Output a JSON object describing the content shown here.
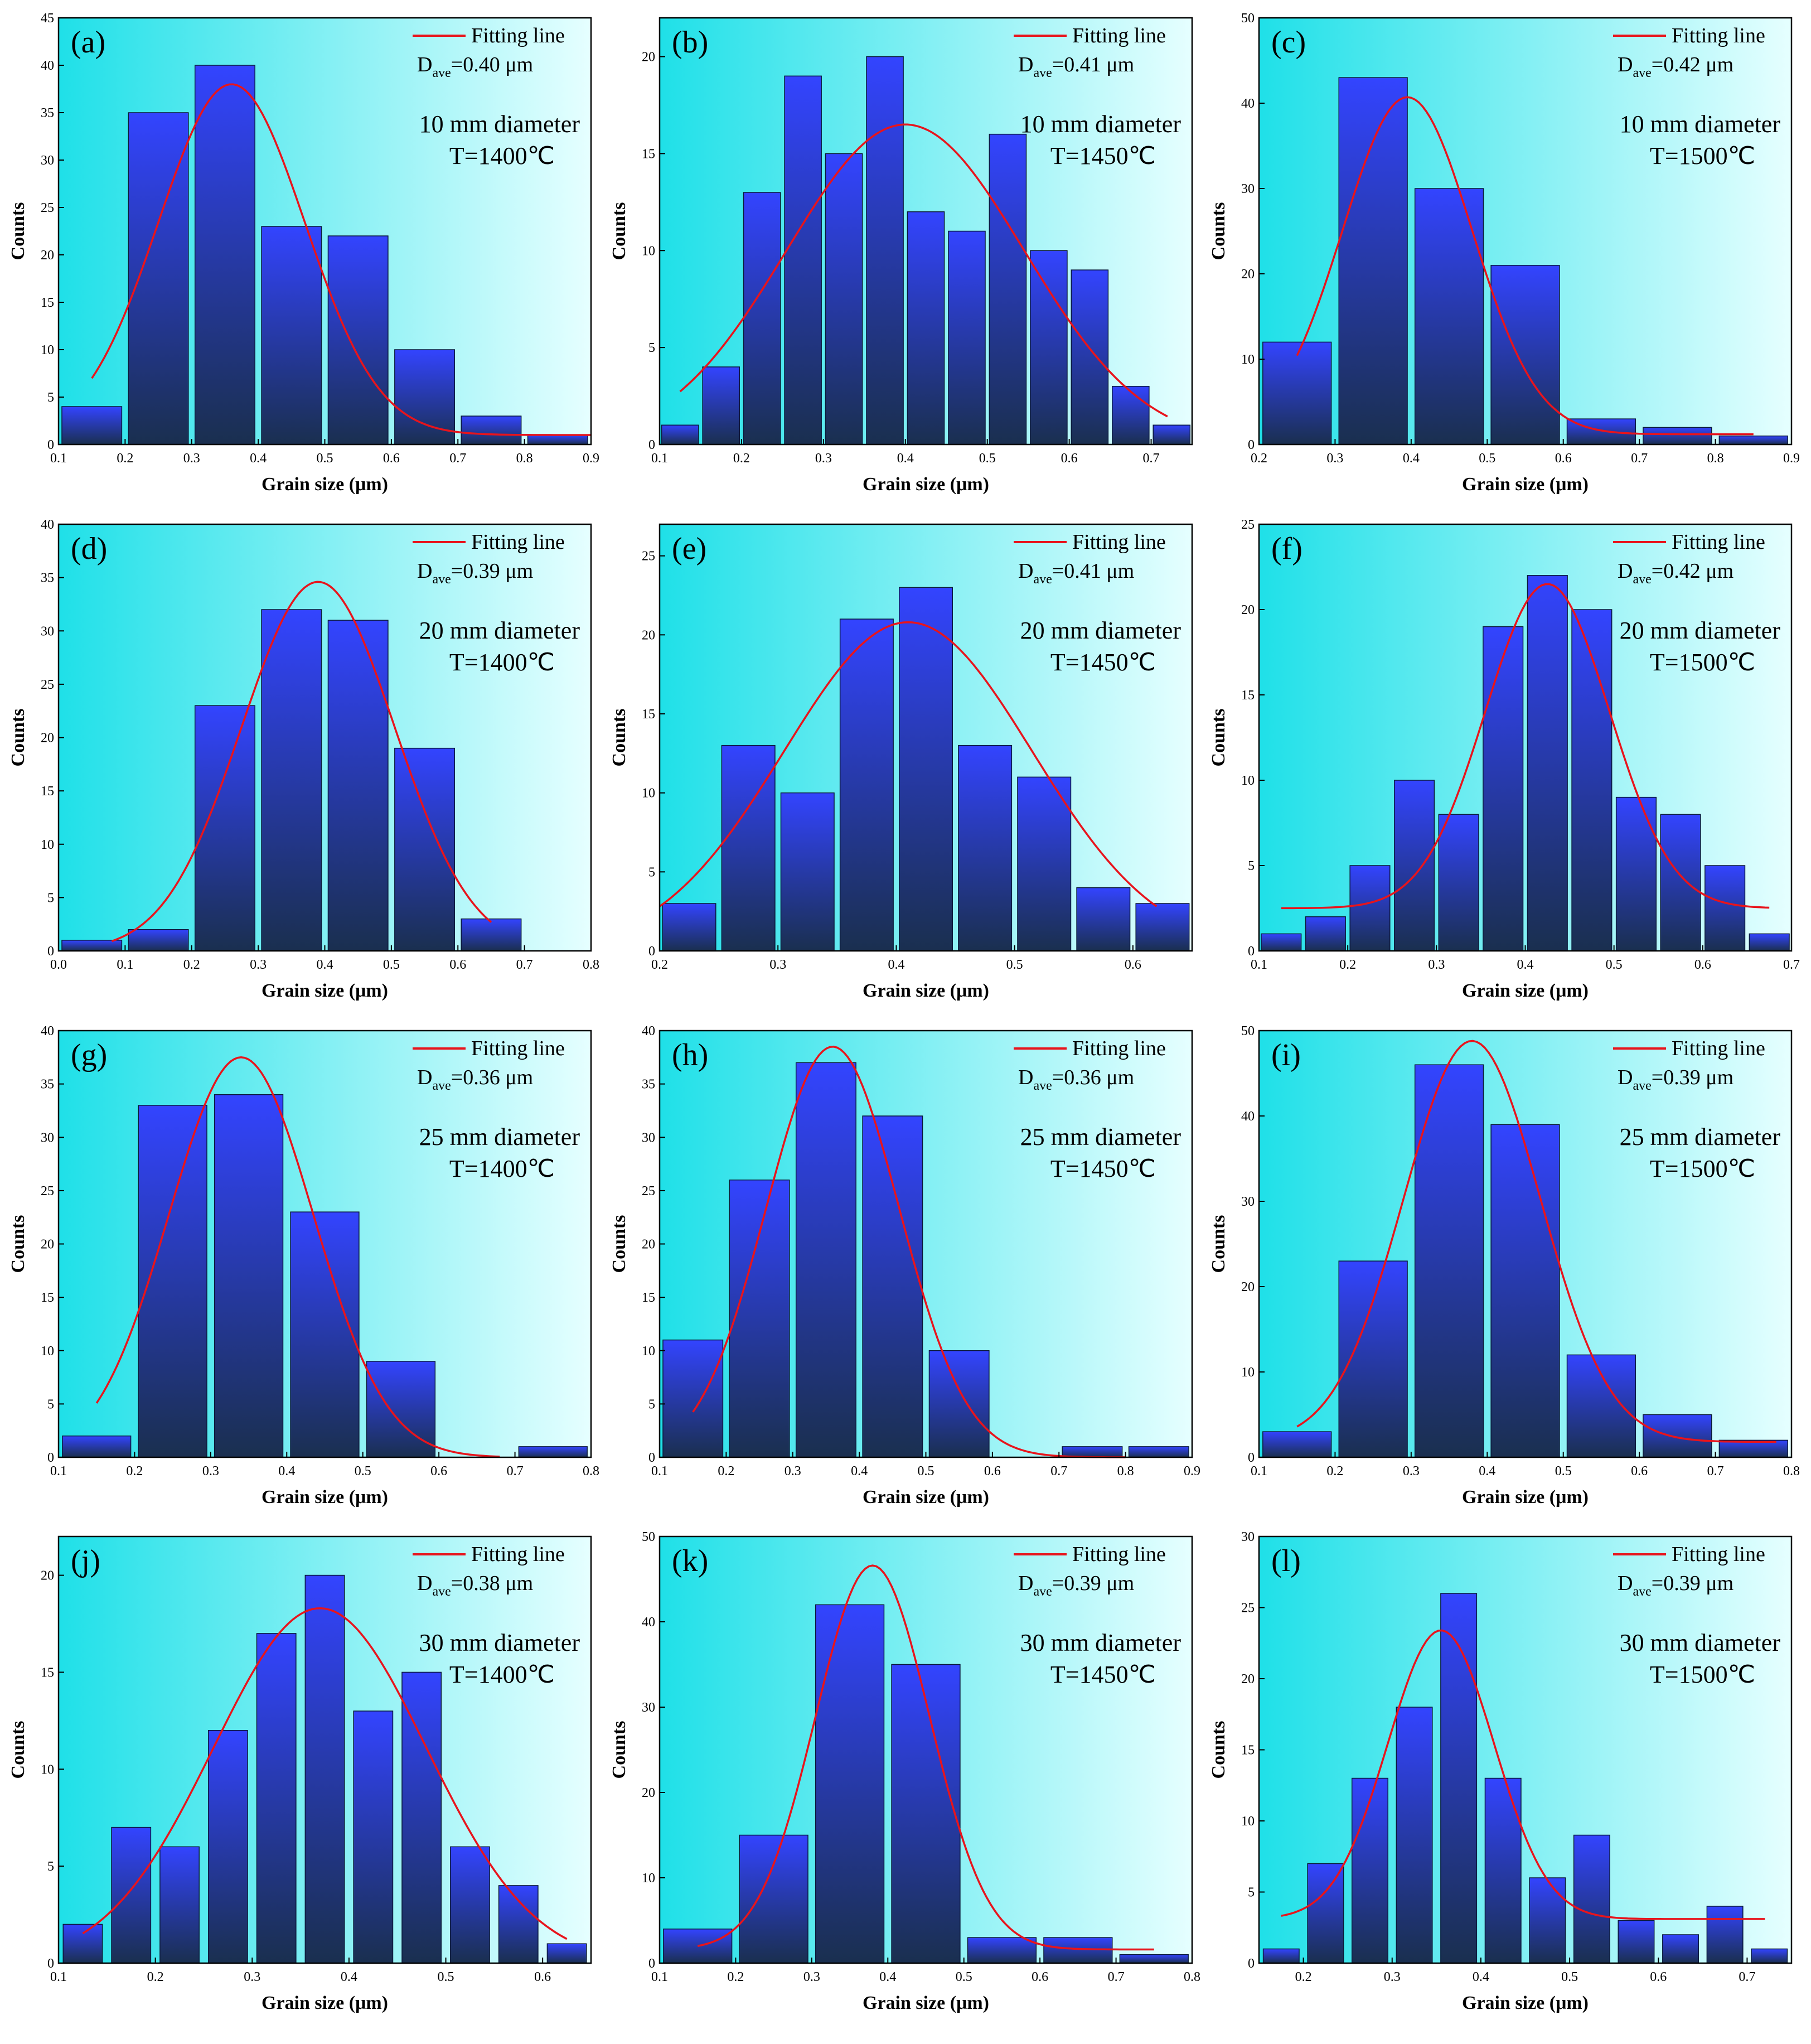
{
  "colors": {
    "bg_left": "#1fe0e8",
    "bg_right": "#e6ffff",
    "bar_top": "#3344ff",
    "bar_bottom": "#1a2f4f",
    "fit_line": "#e8141c",
    "axis": "#000000"
  },
  "chart_data": [
    {
      "type": "bar",
      "panel": "(a)",
      "xlabel": "Grain size (μm)",
      "ylabel": "Counts",
      "xlim": [
        0.1,
        0.9
      ],
      "ylim": [
        0,
        45
      ],
      "xticks": [
        "0.1",
        "0.2",
        "0.3",
        "0.4",
        "0.5",
        "0.6",
        "0.7",
        "0.8",
        "0.9"
      ],
      "xtick_values": [
        0.1,
        0.2,
        0.3,
        0.4,
        0.5,
        0.6,
        0.7,
        0.8,
        0.9
      ],
      "yticks": [
        "0",
        "5",
        "10",
        "15",
        "20",
        "25",
        "30",
        "35",
        "40",
        "45"
      ],
      "ytick_values": [
        0,
        5,
        10,
        15,
        20,
        25,
        30,
        35,
        40,
        45
      ],
      "bin_width": 0.1,
      "x": [
        0.15,
        0.25,
        0.35,
        0.45,
        0.55,
        0.65,
        0.75,
        0.85
      ],
      "values": [
        4,
        35,
        40,
        23,
        22,
        10,
        3,
        1
      ],
      "fit": {
        "mean": 0.36,
        "sigma": 0.11,
        "amp": 37,
        "base": 1,
        "xmin": 0.15,
        "xmax": 0.9
      },
      "legend": "Fitting line",
      "dave_value": "=0.40 μm",
      "condition": [
        "10 mm diameter",
        "T=1400℃"
      ]
    },
    {
      "type": "bar",
      "panel": "(b)",
      "xlabel": "Grain size (μm)",
      "ylabel": "Counts",
      "xlim": [
        0.1,
        0.75
      ],
      "ylim": [
        0,
        22
      ],
      "xticks": [
        "0.1",
        "0.2",
        "0.3",
        "0.4",
        "0.5",
        "0.6",
        "0.7"
      ],
      "xtick_values": [
        0.1,
        0.2,
        0.3,
        0.4,
        0.5,
        0.6,
        0.7
      ],
      "yticks": [
        "0",
        "5",
        "10",
        "15",
        "20"
      ],
      "ytick_values": [
        0,
        5,
        10,
        15,
        20
      ],
      "bin_width": 0.05,
      "x": [
        0.125,
        0.175,
        0.225,
        0.275,
        0.325,
        0.375,
        0.425,
        0.475,
        0.525,
        0.575,
        0.625,
        0.675,
        0.725
      ],
      "values": [
        1,
        4,
        13,
        19,
        15,
        20,
        12,
        11,
        16,
        10,
        9,
        3,
        1
      ],
      "fit": {
        "mean": 0.4,
        "sigma": 0.145,
        "amp": 16.5,
        "base": 0,
        "xmin": 0.125,
        "xmax": 0.72
      },
      "legend": "Fitting line",
      "dave_value": "=0.41 μm",
      "condition": [
        "10 mm diameter",
        "T=1450℃"
      ]
    },
    {
      "type": "bar",
      "panel": "(c)",
      "xlabel": "Grain size (μm)",
      "ylabel": "Counts",
      "xlim": [
        0.2,
        0.9
      ],
      "ylim": [
        0,
        50
      ],
      "xticks": [
        "0.2",
        "0.3",
        "0.4",
        "0.5",
        "0.6",
        "0.7",
        "0.8",
        "0.9"
      ],
      "xtick_values": [
        0.2,
        0.3,
        0.4,
        0.5,
        0.6,
        0.7,
        0.8,
        0.9
      ],
      "yticks": [
        "0",
        "10",
        "20",
        "30",
        "40",
        "50"
      ],
      "ytick_values": [
        0,
        10,
        20,
        30,
        40,
        50
      ],
      "bin_width": 0.1,
      "x": [
        0.25,
        0.35,
        0.45,
        0.55,
        0.65,
        0.75,
        0.85
      ],
      "values": [
        12,
        43,
        30,
        21,
        3,
        2,
        1
      ],
      "fit": {
        "mean": 0.395,
        "sigma": 0.085,
        "amp": 39.5,
        "base": 1.2,
        "xmin": 0.25,
        "xmax": 0.85
      },
      "legend": "Fitting line",
      "dave_value": "=0.42 μm",
      "condition": [
        "10 mm diameter",
        "T=1500℃"
      ]
    },
    {
      "type": "bar",
      "panel": "(d)",
      "xlabel": "Grain size (μm)",
      "ylabel": "Counts",
      "xlim": [
        0.0,
        0.8
      ],
      "ylim": [
        0,
        40
      ],
      "xticks": [
        "0.0",
        "0.1",
        "0.2",
        "0.3",
        "0.4",
        "0.5",
        "0.6",
        "0.7",
        "0.8"
      ],
      "xtick_values": [
        0,
        0.1,
        0.2,
        0.3,
        0.4,
        0.5,
        0.6,
        0.7,
        0.8
      ],
      "yticks": [
        "0",
        "5",
        "10",
        "15",
        "20",
        "25",
        "30",
        "35",
        "40"
      ],
      "ytick_values": [
        0,
        5,
        10,
        15,
        20,
        25,
        30,
        35,
        40
      ],
      "bin_width": 0.1,
      "x": [
        0.05,
        0.15,
        0.25,
        0.35,
        0.45,
        0.55,
        0.65
      ],
      "values": [
        1,
        2,
        23,
        32,
        31,
        19,
        3
      ],
      "fit": {
        "mean": 0.39,
        "sigma": 0.115,
        "amp": 34.6,
        "base": 0,
        "xmin": 0.08,
        "xmax": 0.65
      },
      "legend": "Fitting line",
      "dave_value": "=0.39 μm",
      "condition": [
        "20 mm diameter",
        "T=1400℃"
      ]
    },
    {
      "type": "bar",
      "panel": "(e)",
      "xlabel": "Grain size (μm)",
      "ylabel": "Counts",
      "xlim": [
        0.2,
        0.65
      ],
      "ylim": [
        0,
        27
      ],
      "xticks": [
        "0.2",
        "0.3",
        "0.4",
        "0.5",
        "0.6"
      ],
      "xtick_values": [
        0.2,
        0.3,
        0.4,
        0.5,
        0.6
      ],
      "yticks": [
        "0",
        "5",
        "10",
        "15",
        "20",
        "25"
      ],
      "ytick_values": [
        0,
        5,
        10,
        15,
        20,
        25
      ],
      "bin_width": 0.05,
      "x": [
        0.225,
        0.275,
        0.325,
        0.375,
        0.425,
        0.475,
        0.525,
        0.575,
        0.625
      ],
      "values": [
        3,
        13,
        10,
        21,
        23,
        13,
        11,
        4,
        3
      ],
      "fit": {
        "mean": 0.41,
        "sigma": 0.105,
        "amp": 20.8,
        "base": 0,
        "xmin": 0.2,
        "xmax": 0.62
      },
      "legend": "Fitting line",
      "dave_value": "=0.41 μm",
      "condition": [
        "20 mm diameter",
        "T=1450℃"
      ]
    },
    {
      "type": "bar",
      "panel": "(f)",
      "xlabel": "Grain size (μm)",
      "ylabel": "Counts",
      "xlim": [
        0.1,
        0.7
      ],
      "ylim": [
        0,
        25
      ],
      "xticks": [
        "0.1",
        "0.2",
        "0.3",
        "0.4",
        "0.5",
        "0.6",
        "0.7"
      ],
      "xtick_values": [
        0.1,
        0.2,
        0.3,
        0.4,
        0.5,
        0.6,
        0.7
      ],
      "yticks": [
        "0",
        "5",
        "10",
        "15",
        "20",
        "25"
      ],
      "ytick_values": [
        0,
        5,
        10,
        15,
        20,
        25
      ],
      "bin_width": 0.05,
      "x": [
        0.125,
        0.175,
        0.225,
        0.275,
        0.325,
        0.375,
        0.425,
        0.475,
        0.525,
        0.575,
        0.625,
        0.675
      ],
      "values": [
        1,
        2,
        5,
        10,
        8,
        19,
        22,
        20,
        9,
        8,
        5,
        1
      ],
      "fit": {
        "mean": 0.425,
        "sigma": 0.07,
        "amp": 19,
        "base": 2.5,
        "xmin": 0.125,
        "xmax": 0.675
      },
      "legend": "Fitting line",
      "dave_value": "=0.42 μm",
      "condition": [
        "20 mm diameter",
        "T=1500℃"
      ]
    },
    {
      "type": "bar",
      "panel": "(g)",
      "xlabel": "Grain size (μm)",
      "ylabel": "Counts",
      "xlim": [
        0.1,
        0.8
      ],
      "ylim": [
        0,
        40
      ],
      "xticks": [
        "0.1",
        "0.2",
        "0.3",
        "0.4",
        "0.5",
        "0.6",
        "0.7",
        "0.8"
      ],
      "xtick_values": [
        0.1,
        0.2,
        0.3,
        0.4,
        0.5,
        0.6,
        0.7,
        0.8
      ],
      "yticks": [
        "0",
        "5",
        "10",
        "15",
        "20",
        "25",
        "30",
        "35",
        "40"
      ],
      "ytick_values": [
        0,
        5,
        10,
        15,
        20,
        25,
        30,
        35,
        40
      ],
      "bin_width": 0.1,
      "x": [
        0.15,
        0.25,
        0.35,
        0.45,
        0.55,
        0.75
      ],
      "values": [
        2,
        33,
        34,
        23,
        9,
        1
      ],
      "fit": {
        "mean": 0.34,
        "sigma": 0.095,
        "amp": 37.5,
        "base": 0,
        "xmin": 0.15,
        "xmax": 0.68
      },
      "legend": "Fitting line",
      "dave_value": "=0.36 μm",
      "condition": [
        "25 mm diameter",
        "T=1400℃"
      ]
    },
    {
      "type": "bar",
      "panel": "(h)",
      "xlabel": "Grain size (μm)",
      "ylabel": "Counts",
      "xlim": [
        0.1,
        0.9
      ],
      "ylim": [
        0,
        40
      ],
      "xticks": [
        "0.1",
        "0.2",
        "0.3",
        "0.4",
        "0.5",
        "0.6",
        "0.7",
        "0.8",
        "0.9"
      ],
      "xtick_values": [
        0.1,
        0.2,
        0.3,
        0.4,
        0.5,
        0.6,
        0.7,
        0.8,
        0.9
      ],
      "yticks": [
        "0",
        "5",
        "10",
        "15",
        "20",
        "25",
        "30",
        "35",
        "40"
      ],
      "ytick_values": [
        0,
        5,
        10,
        15,
        20,
        25,
        30,
        35,
        40
      ],
      "bin_width": 0.1,
      "x": [
        0.15,
        0.25,
        0.35,
        0.45,
        0.55,
        0.75,
        0.85
      ],
      "values": [
        11,
        26,
        37,
        32,
        10,
        1,
        1
      ],
      "fit": {
        "mean": 0.36,
        "sigma": 0.1,
        "amp": 38.5,
        "base": 0,
        "xmin": 0.15,
        "xmax": 0.8
      },
      "legend": "Fitting line",
      "dave_value": "=0.36 μm",
      "condition": [
        "25 mm diameter",
        "T=1450℃"
      ]
    },
    {
      "type": "bar",
      "panel": "(i)",
      "xlabel": "Grain size (μm)",
      "ylabel": "Counts",
      "xlim": [
        0.1,
        0.8
      ],
      "ylim": [
        0,
        50
      ],
      "xticks": [
        "0.1",
        "0.2",
        "0.3",
        "0.4",
        "0.5",
        "0.6",
        "0.7",
        "0.8"
      ],
      "xtick_values": [
        0.1,
        0.2,
        0.3,
        0.4,
        0.5,
        0.6,
        0.7,
        0.8
      ],
      "yticks": [
        "0",
        "10",
        "20",
        "30",
        "40",
        "50"
      ],
      "ytick_values": [
        0,
        10,
        20,
        30,
        40,
        50
      ],
      "bin_width": 0.1,
      "x": [
        0.15,
        0.25,
        0.35,
        0.45,
        0.55,
        0.65,
        0.75
      ],
      "values": [
        3,
        23,
        46,
        39,
        12,
        5,
        2
      ],
      "fit": {
        "mean": 0.38,
        "sigma": 0.09,
        "amp": 47,
        "base": 1.8,
        "xmin": 0.15,
        "xmax": 0.78
      },
      "legend": "Fitting line",
      "dave_value": "=0.39 μm",
      "condition": [
        "25 mm diameter",
        "T=1500℃"
      ]
    },
    {
      "type": "bar",
      "panel": "(j)",
      "xlabel": "Grain size (μm)",
      "ylabel": "Counts",
      "xlim": [
        0.1,
        0.65
      ],
      "ylim": [
        0,
        22
      ],
      "xticks": [
        "0.1",
        "0.2",
        "0.3",
        "0.4",
        "0.5",
        "0.6"
      ],
      "xtick_values": [
        0.1,
        0.2,
        0.3,
        0.4,
        0.5,
        0.6
      ],
      "yticks": [
        "0",
        "5",
        "10",
        "15",
        "20"
      ],
      "ytick_values": [
        0,
        5,
        10,
        15,
        20
      ],
      "bin_width": 0.045,
      "x": [
        0.125,
        0.175,
        0.225,
        0.275,
        0.325,
        0.375,
        0.425,
        0.475,
        0.525,
        0.575,
        0.625
      ],
      "values": [
        2,
        7,
        6,
        12,
        17,
        20,
        13,
        15,
        6,
        4,
        1
      ],
      "fit": {
        "mean": 0.37,
        "sigma": 0.11,
        "amp": 18.3,
        "base": 0,
        "xmin": 0.125,
        "xmax": 0.625
      },
      "legend": "Fitting line",
      "dave_value": "=0.38 μm",
      "condition": [
        "30 mm diameter",
        "T=1400℃"
      ]
    },
    {
      "type": "bar",
      "panel": "(k)",
      "xlabel": "Grain size (μm)",
      "ylabel": "Counts",
      "xlim": [
        0.1,
        0.8
      ],
      "ylim": [
        0,
        50
      ],
      "xticks": [
        "0.1",
        "0.2",
        "0.3",
        "0.4",
        "0.5",
        "0.6",
        "0.7",
        "0.8"
      ],
      "xtick_values": [
        0.1,
        0.2,
        0.3,
        0.4,
        0.5,
        0.6,
        0.7,
        0.8
      ],
      "yticks": [
        "0",
        "10",
        "20",
        "30",
        "40",
        "50"
      ],
      "ytick_values": [
        0,
        10,
        20,
        30,
        40,
        50
      ],
      "bin_width": 0.1,
      "x": [
        0.15,
        0.25,
        0.35,
        0.45,
        0.55,
        0.65,
        0.75
      ],
      "values": [
        4,
        15,
        42,
        35,
        3,
        3,
        1
      ],
      "fit": {
        "mean": 0.38,
        "sigma": 0.075,
        "amp": 45,
        "base": 1.6,
        "xmin": 0.15,
        "xmax": 0.75
      },
      "legend": "Fitting line",
      "dave_value": "=0.39 μm",
      "condition": [
        "30 mm diameter",
        "T=1450℃"
      ]
    },
    {
      "type": "bar",
      "panel": "(l)",
      "xlabel": "Grain size (μm)",
      "ylabel": "Counts",
      "xlim": [
        0.15,
        0.75
      ],
      "ylim": [
        0,
        30
      ],
      "xticks": [
        "0.2",
        "0.3",
        "0.4",
        "0.5",
        "0.6",
        "0.7"
      ],
      "xtick_values": [
        0.2,
        0.3,
        0.4,
        0.5,
        0.6,
        0.7
      ],
      "yticks": [
        "0",
        "5",
        "10",
        "15",
        "20",
        "25",
        "30"
      ],
      "ytick_values": [
        0,
        5,
        10,
        15,
        20,
        25,
        30
      ],
      "bin_width": 0.045,
      "x": [
        0.175,
        0.225,
        0.275,
        0.325,
        0.375,
        0.425,
        0.475,
        0.525,
        0.575,
        0.625,
        0.675,
        0.725
      ],
      "values": [
        1,
        7,
        13,
        18,
        26,
        13,
        6,
        9,
        3,
        2,
        4,
        1
      ],
      "fit": {
        "mean": 0.355,
        "sigma": 0.06,
        "amp": 20.3,
        "base": 3.1,
        "xmin": 0.175,
        "xmax": 0.72
      },
      "legend": "Fitting line",
      "dave_value": "=0.39 μm",
      "condition": [
        "30 mm diameter",
        "T=1500℃"
      ]
    }
  ]
}
